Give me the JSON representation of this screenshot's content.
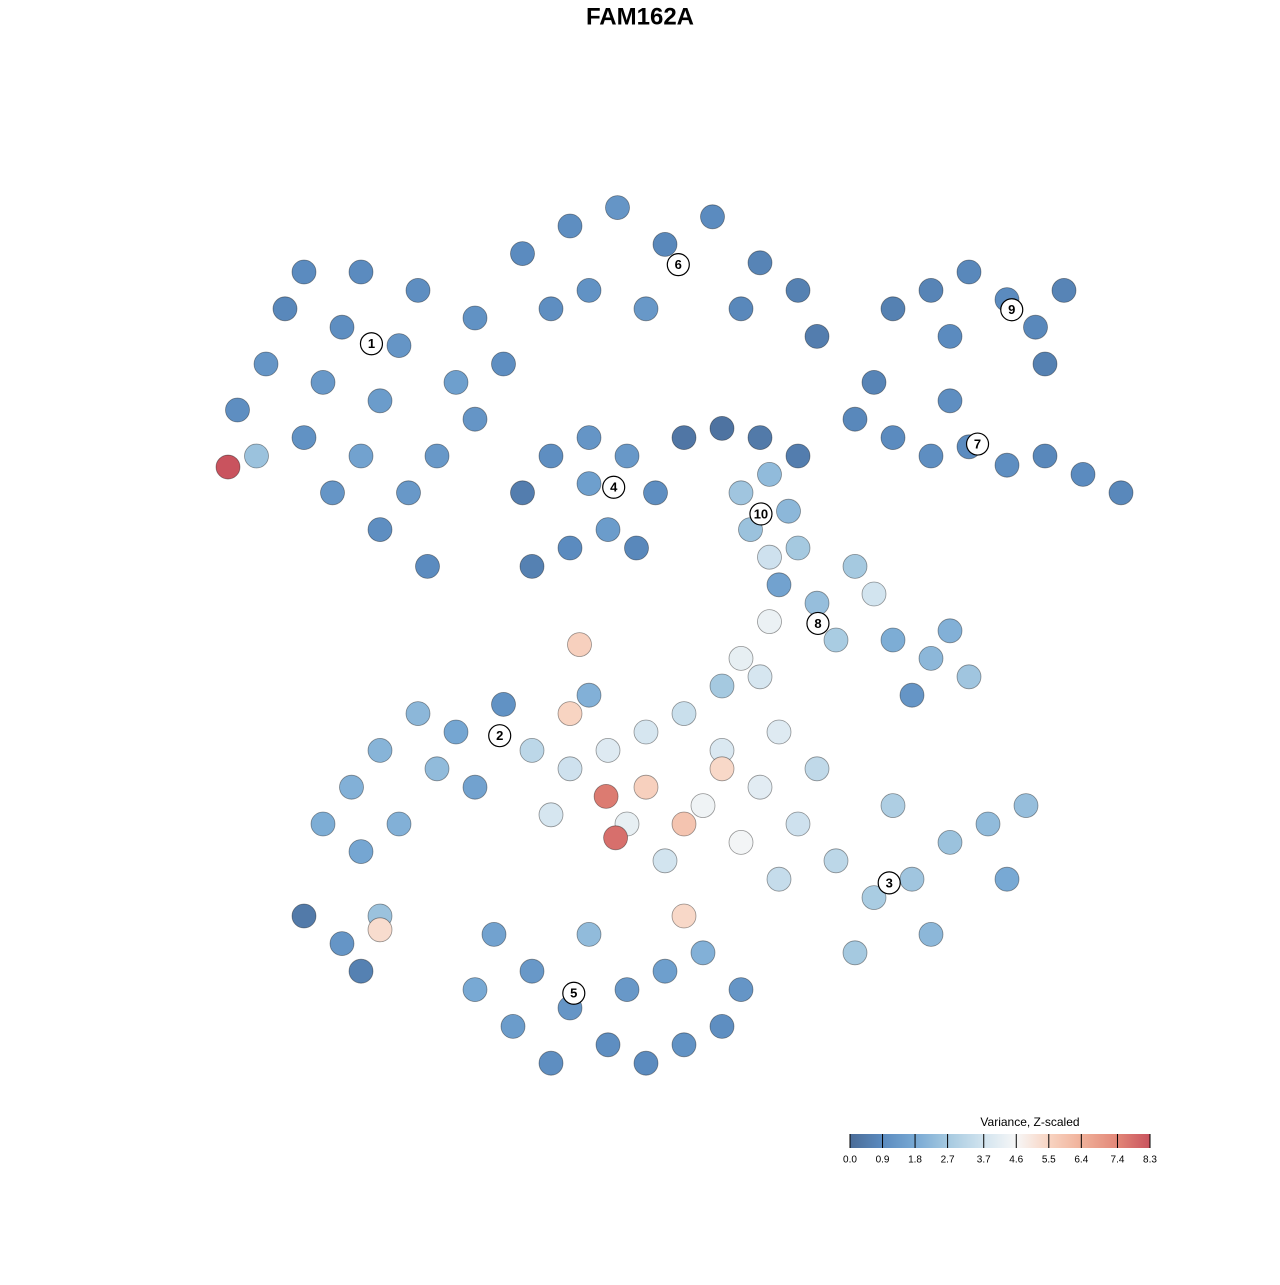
{
  "chart_data": {
    "type": "scatter",
    "title": "FAM162A",
    "xlim": [
      0,
      100
    ],
    "ylim": [
      0,
      100
    ],
    "x": [
      5,
      8,
      10,
      12,
      14,
      16,
      18,
      20,
      22,
      24,
      26,
      28,
      30,
      15,
      20,
      25,
      18,
      23,
      12,
      30,
      33,
      7,
      4,
      35,
      40,
      45,
      50,
      55,
      60,
      64,
      42,
      48,
      38,
      58,
      66,
      74,
      78,
      82,
      86,
      89,
      92,
      80,
      90,
      52,
      56,
      60,
      64,
      70,
      74,
      78,
      82,
      86,
      90,
      94,
      98,
      72,
      80,
      35,
      38,
      42,
      46,
      49,
      44,
      40,
      36,
      42,
      47,
      58,
      61,
      63,
      59,
      61,
      62,
      66,
      70,
      74,
      78,
      82,
      80,
      68,
      64,
      72,
      58,
      61,
      76,
      14,
      17,
      20,
      24,
      28,
      30,
      22,
      33,
      18,
      26,
      12,
      16,
      18,
      20,
      20,
      40,
      44,
      48,
      52,
      56,
      60,
      64,
      68,
      72,
      76,
      80,
      84,
      88,
      78,
      70,
      46,
      50,
      54,
      58,
      62,
      48,
      52,
      56,
      43.8,
      44.8,
      40,
      36,
      66,
      62,
      60,
      56,
      42,
      74,
      86,
      52,
      38,
      41,
      32,
      36,
      40,
      44,
      48,
      52,
      56,
      34,
      38,
      46,
      42,
      50,
      58,
      30,
      54
    ],
    "y": [
      75,
      80,
      86,
      72,
      78,
      84,
      90,
      76,
      82,
      88,
      70,
      78,
      85,
      66,
      62,
      58,
      70,
      66,
      90,
      74,
      80,
      70,
      68.8,
      92,
      95,
      97,
      93,
      96,
      91,
      88,
      88,
      86,
      86,
      86,
      83,
      86,
      88,
      90,
      87,
      84,
      88,
      83,
      80,
      72,
      73,
      72,
      70,
      74,
      72,
      70,
      71,
      69,
      70,
      68,
      66,
      78,
      76,
      66,
      70,
      72,
      70,
      66,
      62,
      60,
      58,
      67,
      60,
      66,
      68,
      64,
      62,
      59,
      56,
      54,
      58,
      50,
      48,
      46,
      51,
      50,
      60,
      55,
      48,
      52,
      44,
      30,
      34,
      38,
      42,
      40,
      34,
      30,
      43,
      27,
      36,
      20,
      17,
      14,
      20,
      18.5,
      36,
      38,
      40,
      42,
      38,
      34,
      30,
      26,
      22,
      24,
      28,
      30,
      32,
      18,
      16,
      30,
      26,
      32,
      28,
      24,
      34,
      30,
      36,
      33,
      28.5,
      42,
      38,
      36,
      40,
      46,
      45,
      44,
      32,
      24,
      20,
      31,
      49.5,
      18,
      14,
      10,
      6,
      4,
      6,
      8,
      8,
      4,
      12,
      18,
      14,
      12,
      12,
      16
    ],
    "values": [
      1.0,
      1.2,
      0.8,
      1.1,
      1.3,
      1.0,
      0.9,
      1.4,
      1.2,
      1.0,
      1.3,
      1.5,
      1.1,
      1.2,
      1.0,
      0.9,
      1.6,
      1.3,
      0.9,
      1.2,
      1.0,
      2.5,
      8.3,
      0.9,
      1.0,
      1.2,
      0.8,
      0.9,
      0.7,
      0.6,
      1.1,
      1.3,
      1.0,
      0.8,
      0.5,
      0.6,
      0.7,
      0.8,
      0.9,
      0.8,
      0.7,
      0.9,
      0.6,
      0.3,
      0.2,
      0.4,
      0.5,
      0.8,
      0.9,
      1.0,
      0.9,
      1.0,
      0.8,
      0.9,
      0.8,
      0.7,
      1.0,
      0.5,
      1.0,
      1.2,
      1.3,
      1.0,
      1.4,
      0.9,
      0.6,
      1.5,
      0.8,
      2.6,
      2.3,
      2.2,
      2.5,
      3.6,
      1.6,
      2.4,
      2.7,
      1.9,
      2.2,
      2.6,
      2.0,
      2.8,
      2.7,
      3.7,
      4.2,
      4.3,
      1.2,
      1.9,
      2.0,
      2.1,
      2.2,
      1.7,
      1.6,
      2.0,
      1.1,
      1.7,
      2.3,
      0.4,
      1.2,
      0.6,
      2.5,
      5.3,
      3.6,
      4.0,
      3.8,
      3.5,
      3.9,
      4.1,
      3.6,
      3.2,
      2.8,
      2.6,
      2.5,
      2.3,
      2.4,
      2.2,
      2.7,
      4.2,
      3.7,
      4.4,
      4.5,
      3.4,
      5.6,
      5.9,
      5.4,
      7.6,
      7.8,
      5.5,
      3.2,
      3.3,
      4.0,
      3.8,
      2.7,
      2.0,
      2.9,
      1.8,
      5.4,
      3.8,
      5.6,
      1.6,
      1.3,
      1.2,
      1.0,
      0.9,
      1.1,
      1.0,
      1.4,
      1.0,
      1.3,
      2.3,
      1.5,
      1.2,
      1.8,
      2.0
    ],
    "cluster_labels": [
      {
        "label": "1",
        "x": 19.1,
        "y": 82.2
      },
      {
        "label": "6",
        "x": 51.4,
        "y": 90.8
      },
      {
        "label": "9",
        "x": 86.5,
        "y": 85.9
      },
      {
        "label": "4",
        "x": 44.6,
        "y": 66.6
      },
      {
        "label": "10",
        "x": 60.1,
        "y": 63.7
      },
      {
        "label": "7",
        "x": 82.9,
        "y": 71.3
      },
      {
        "label": "8",
        "x": 66.1,
        "y": 51.8
      },
      {
        "label": "2",
        "x": 32.6,
        "y": 39.6
      },
      {
        "label": "3",
        "x": 73.6,
        "y": 23.6
      },
      {
        "label": "5",
        "x": 40.4,
        "y": 11.6
      }
    ],
    "colorbar": {
      "title": "Variance, Z-scaled",
      "clim": [
        0,
        8.3
      ],
      "ticks": [
        {
          "value": 0,
          "label": "0.0"
        },
        0.9,
        1.8,
        2.7,
        3.7,
        4.6,
        5.5,
        6.4,
        7.4,
        8.3
      ],
      "colors": [
        "#4a6c98",
        "#5b8bbf",
        "#78a9d4",
        "#a5c9e0",
        "#d2e4ef",
        "#f7f7f7",
        "#f8d4c2",
        "#f0b19a",
        "#e28677",
        "#c9535e"
      ]
    }
  }
}
